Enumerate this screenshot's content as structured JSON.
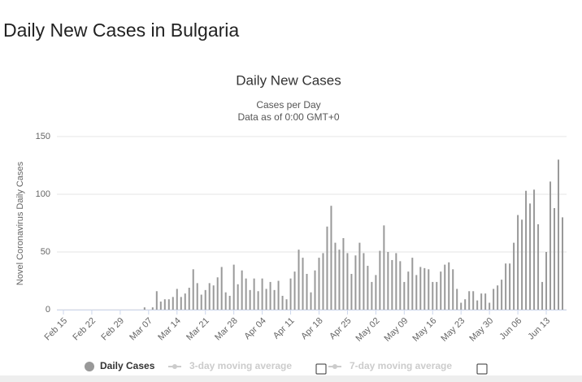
{
  "page_title": "Daily New Cases in Bulgaria",
  "chart_data": {
    "type": "bar",
    "title": "Daily New Cases",
    "subtitle": [
      "Cases per Day",
      "Data as of 0:00 GMT+0"
    ],
    "y_label": "Novel Coronavirus Daily Cases",
    "categories": [
      "Feb 15",
      null,
      null,
      null,
      null,
      null,
      null,
      "Feb 22",
      null,
      null,
      null,
      null,
      null,
      null,
      "Feb 29",
      null,
      null,
      null,
      null,
      null,
      null,
      "Mar 07",
      null,
      null,
      null,
      null,
      null,
      null,
      "Mar 14",
      null,
      null,
      null,
      null,
      null,
      null,
      "Mar 21",
      null,
      null,
      null,
      null,
      null,
      null,
      "Mar 28",
      null,
      null,
      null,
      null,
      null,
      null,
      "Apr 04",
      null,
      null,
      null,
      null,
      null,
      null,
      "Apr 11",
      null,
      null,
      null,
      null,
      null,
      null,
      "Apr 18",
      null,
      null,
      null,
      null,
      null,
      null,
      "Apr 25",
      null,
      null,
      null,
      null,
      null,
      null,
      "May 02",
      null,
      null,
      null,
      null,
      null,
      null,
      "May 09",
      null,
      null,
      null,
      null,
      null,
      null,
      "May 16",
      null,
      null,
      null,
      null,
      null,
      null,
      "May 23",
      null,
      null,
      null,
      null,
      null,
      null,
      "May 30",
      null,
      null,
      null,
      null,
      null,
      null,
      "Jun 06",
      null,
      null,
      null,
      null,
      null,
      null,
      "Jun 13",
      null,
      null,
      null,
      null
    ],
    "series": [
      {
        "name": "Daily Cases",
        "color": "#999999",
        "values": [
          0,
          0,
          0,
          0,
          0,
          0,
          0,
          0,
          0,
          0,
          0,
          0,
          0,
          0,
          0,
          0,
          0,
          0,
          0,
          0,
          2,
          0,
          2,
          16,
          7,
          9,
          9,
          11,
          18,
          11,
          14,
          19,
          35,
          23,
          13,
          17,
          23,
          21,
          28,
          37,
          15,
          12,
          39,
          22,
          34,
          27,
          17,
          27,
          16,
          27,
          18,
          24,
          17,
          25,
          12,
          9,
          27,
          33,
          52,
          45,
          31,
          15,
          34,
          45,
          49,
          72,
          90,
          58,
          52,
          62,
          49,
          31,
          47,
          58,
          49,
          38,
          24,
          30,
          51,
          73,
          50,
          43,
          49,
          42,
          24,
          33,
          45,
          30,
          37,
          36,
          35,
          24,
          24,
          33,
          39,
          41,
          35,
          18,
          6,
          9,
          16,
          16,
          8,
          14,
          14,
          6,
          18,
          21,
          26,
          40,
          40,
          58,
          82,
          78,
          103,
          92,
          104,
          74,
          24,
          50,
          111,
          88,
          130,
          80
        ]
      }
    ],
    "legend_extra": [
      "3-day moving average",
      "7-day moving average"
    ],
    "ylim": [
      0,
      150
    ],
    "yticks": [
      0,
      50,
      100,
      150
    ],
    "grid": true
  }
}
